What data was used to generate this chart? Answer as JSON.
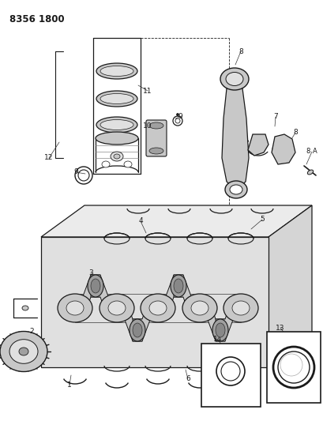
{
  "title": "8356 1800",
  "bg_color": "#ffffff",
  "line_color": "#1a1a1a",
  "figsize": [
    4.1,
    5.33
  ],
  "dpi": 100,
  "gray_light": "#e0e0e0",
  "gray_mid": "#c8c8c8",
  "gray_dark": "#a0a0a0",
  "label_fs": 6.5
}
